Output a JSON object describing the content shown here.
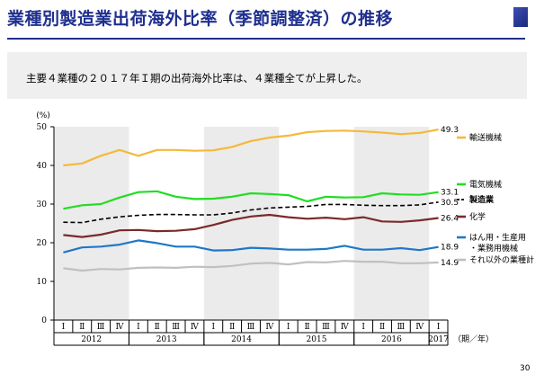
{
  "header": {
    "title": "業種別製造業出荷海外比率（季節調整済）の推移"
  },
  "note": "主要４業種の２０１７年Ｉ期の出荷海外比率は、４業種全てが上昇した。",
  "page_number": "30",
  "chart_data": {
    "type": "line",
    "ylabel": "(%)",
    "xlabel": "（期／年）",
    "ylim": [
      0,
      50
    ],
    "yticks": [
      0,
      10,
      20,
      30,
      40,
      50
    ],
    "quarters": [
      "Ⅰ",
      "Ⅱ",
      "Ⅲ",
      "Ⅳ",
      "Ⅰ",
      "Ⅱ",
      "Ⅲ",
      "Ⅳ",
      "Ⅰ",
      "Ⅱ",
      "Ⅲ",
      "Ⅳ",
      "Ⅰ",
      "Ⅱ",
      "Ⅲ",
      "Ⅳ",
      "Ⅰ",
      "Ⅱ",
      "Ⅲ",
      "Ⅳ",
      "Ⅰ"
    ],
    "years": [
      {
        "label": "2012",
        "start": 0,
        "end": 3
      },
      {
        "label": "2013",
        "start": 4,
        "end": 7
      },
      {
        "label": "2014",
        "start": 8,
        "end": 11
      },
      {
        "label": "2015",
        "start": 12,
        "end": 15
      },
      {
        "label": "2016",
        "start": 16,
        "end": 19
      },
      {
        "label": "2017",
        "start": 20,
        "end": 20
      }
    ],
    "shaded_years": [
      0,
      2,
      4
    ],
    "series": [
      {
        "name": "輸送機械",
        "color": "#f5b93a",
        "dash": "",
        "end_label": "49.3",
        "values": [
          40.0,
          40.5,
          42.5,
          44.0,
          42.5,
          44.0,
          44.0,
          43.8,
          43.9,
          44.8,
          46.3,
          47.2,
          47.7,
          48.6,
          48.9,
          49.0,
          48.8,
          48.5,
          48.1,
          48.4,
          49.3
        ]
      },
      {
        "name": "電気機械",
        "color": "#22dd22",
        "dash": "",
        "end_label": "33.1",
        "values": [
          28.8,
          29.7,
          30.0,
          31.7,
          33.1,
          33.3,
          31.9,
          31.3,
          31.4,
          31.9,
          32.8,
          32.6,
          32.3,
          30.7,
          31.9,
          31.7,
          31.8,
          32.8,
          32.5,
          32.4,
          33.1
        ]
      },
      {
        "name": "製造業",
        "color": "#000000",
        "dash": "5 3",
        "end_label": "30.5",
        "values": [
          25.3,
          25.2,
          26.1,
          26.7,
          27.1,
          27.3,
          27.3,
          27.2,
          27.2,
          27.7,
          28.5,
          29.0,
          29.2,
          29.4,
          29.9,
          29.9,
          29.7,
          29.6,
          29.6,
          29.8,
          30.5
        ]
      },
      {
        "name": "化学",
        "color": "#7a2a2a",
        "dash": "",
        "end_label": "26.4",
        "values": [
          22.0,
          21.5,
          22.1,
          23.2,
          23.3,
          23.0,
          23.1,
          23.5,
          24.6,
          25.9,
          26.8,
          27.2,
          26.6,
          26.2,
          26.5,
          26.1,
          26.6,
          25.5,
          25.4,
          25.8,
          26.4
        ]
      },
      {
        "name": "はん用・生産用・業務用機械",
        "color": "#1e78c8",
        "dash": "",
        "end_label": "18.9",
        "values": [
          17.5,
          18.8,
          19.0,
          19.5,
          20.6,
          19.9,
          19.0,
          19.0,
          18.0,
          18.1,
          18.7,
          18.5,
          18.2,
          18.2,
          18.4,
          19.2,
          18.2,
          18.2,
          18.6,
          18.1,
          18.9
        ]
      },
      {
        "name": "それ以外の業種計",
        "color": "#c0c0c0",
        "dash": "",
        "end_label": "14.9",
        "values": [
          13.4,
          12.8,
          13.2,
          13.1,
          13.5,
          13.6,
          13.5,
          13.8,
          13.7,
          14.0,
          14.6,
          14.8,
          14.4,
          15.0,
          14.9,
          15.3,
          15.1,
          15.1,
          14.7,
          14.7,
          14.9
        ]
      }
    ],
    "legend": [
      {
        "label": "輸送機械",
        "series": 0
      },
      {
        "label": "電気機械",
        "series": 1
      },
      {
        "label": "製造業",
        "series": 2,
        "bold": true
      },
      {
        "label": "化学",
        "series": 3
      },
      {
        "label": "はん用・生産用\n・業務用機械",
        "series": 4
      },
      {
        "label": "それ以外の業種計",
        "series": 5
      }
    ]
  }
}
